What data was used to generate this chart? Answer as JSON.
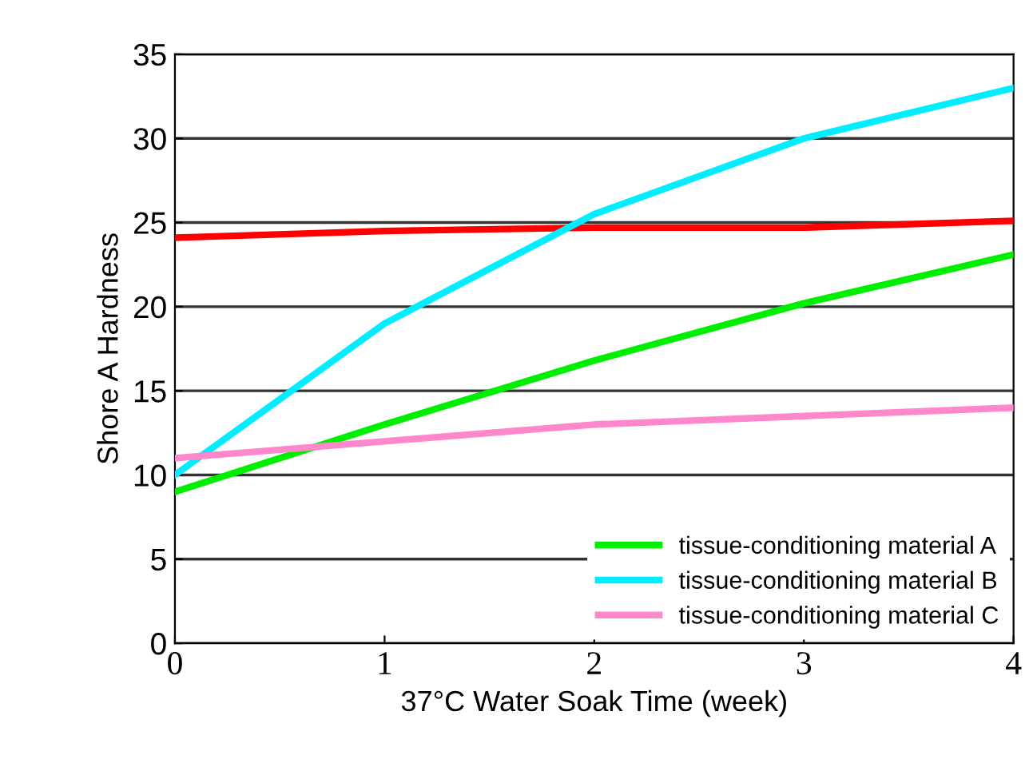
{
  "chart_data": {
    "type": "line",
    "xlabel": "37°C Water Soak Time (week)",
    "ylabel": "Shore A Hardness",
    "x": [
      0,
      1,
      2,
      3,
      4
    ],
    "xlim": [
      0,
      4
    ],
    "xticks": [
      0,
      1,
      2,
      3,
      4
    ],
    "ylim": [
      0,
      35
    ],
    "yticks": [
      0,
      5,
      10,
      15,
      20,
      25,
      30,
      35
    ],
    "grid": "y",
    "legend": "bottom right",
    "marker": "none",
    "line_style": "solid",
    "series": [
      {
        "color": "#ff0000",
        "values": [
          24.1,
          24.5,
          24.7,
          24.7,
          25.1
        ]
      },
      {
        "name": "tissue-conditioning material A",
        "color": "#00ee00",
        "values": [
          9,
          13,
          16.8,
          20.2,
          23.1
        ]
      },
      {
        "name": "tissue-conditioning material B",
        "color": "#00eeff",
        "values": [
          10,
          19,
          25.5,
          30,
          33
        ]
      },
      {
        "name": "tissue-conditioning material C",
        "color": "#ff88cc",
        "values": [
          11,
          12,
          13,
          13.5,
          14
        ]
      }
    ]
  }
}
